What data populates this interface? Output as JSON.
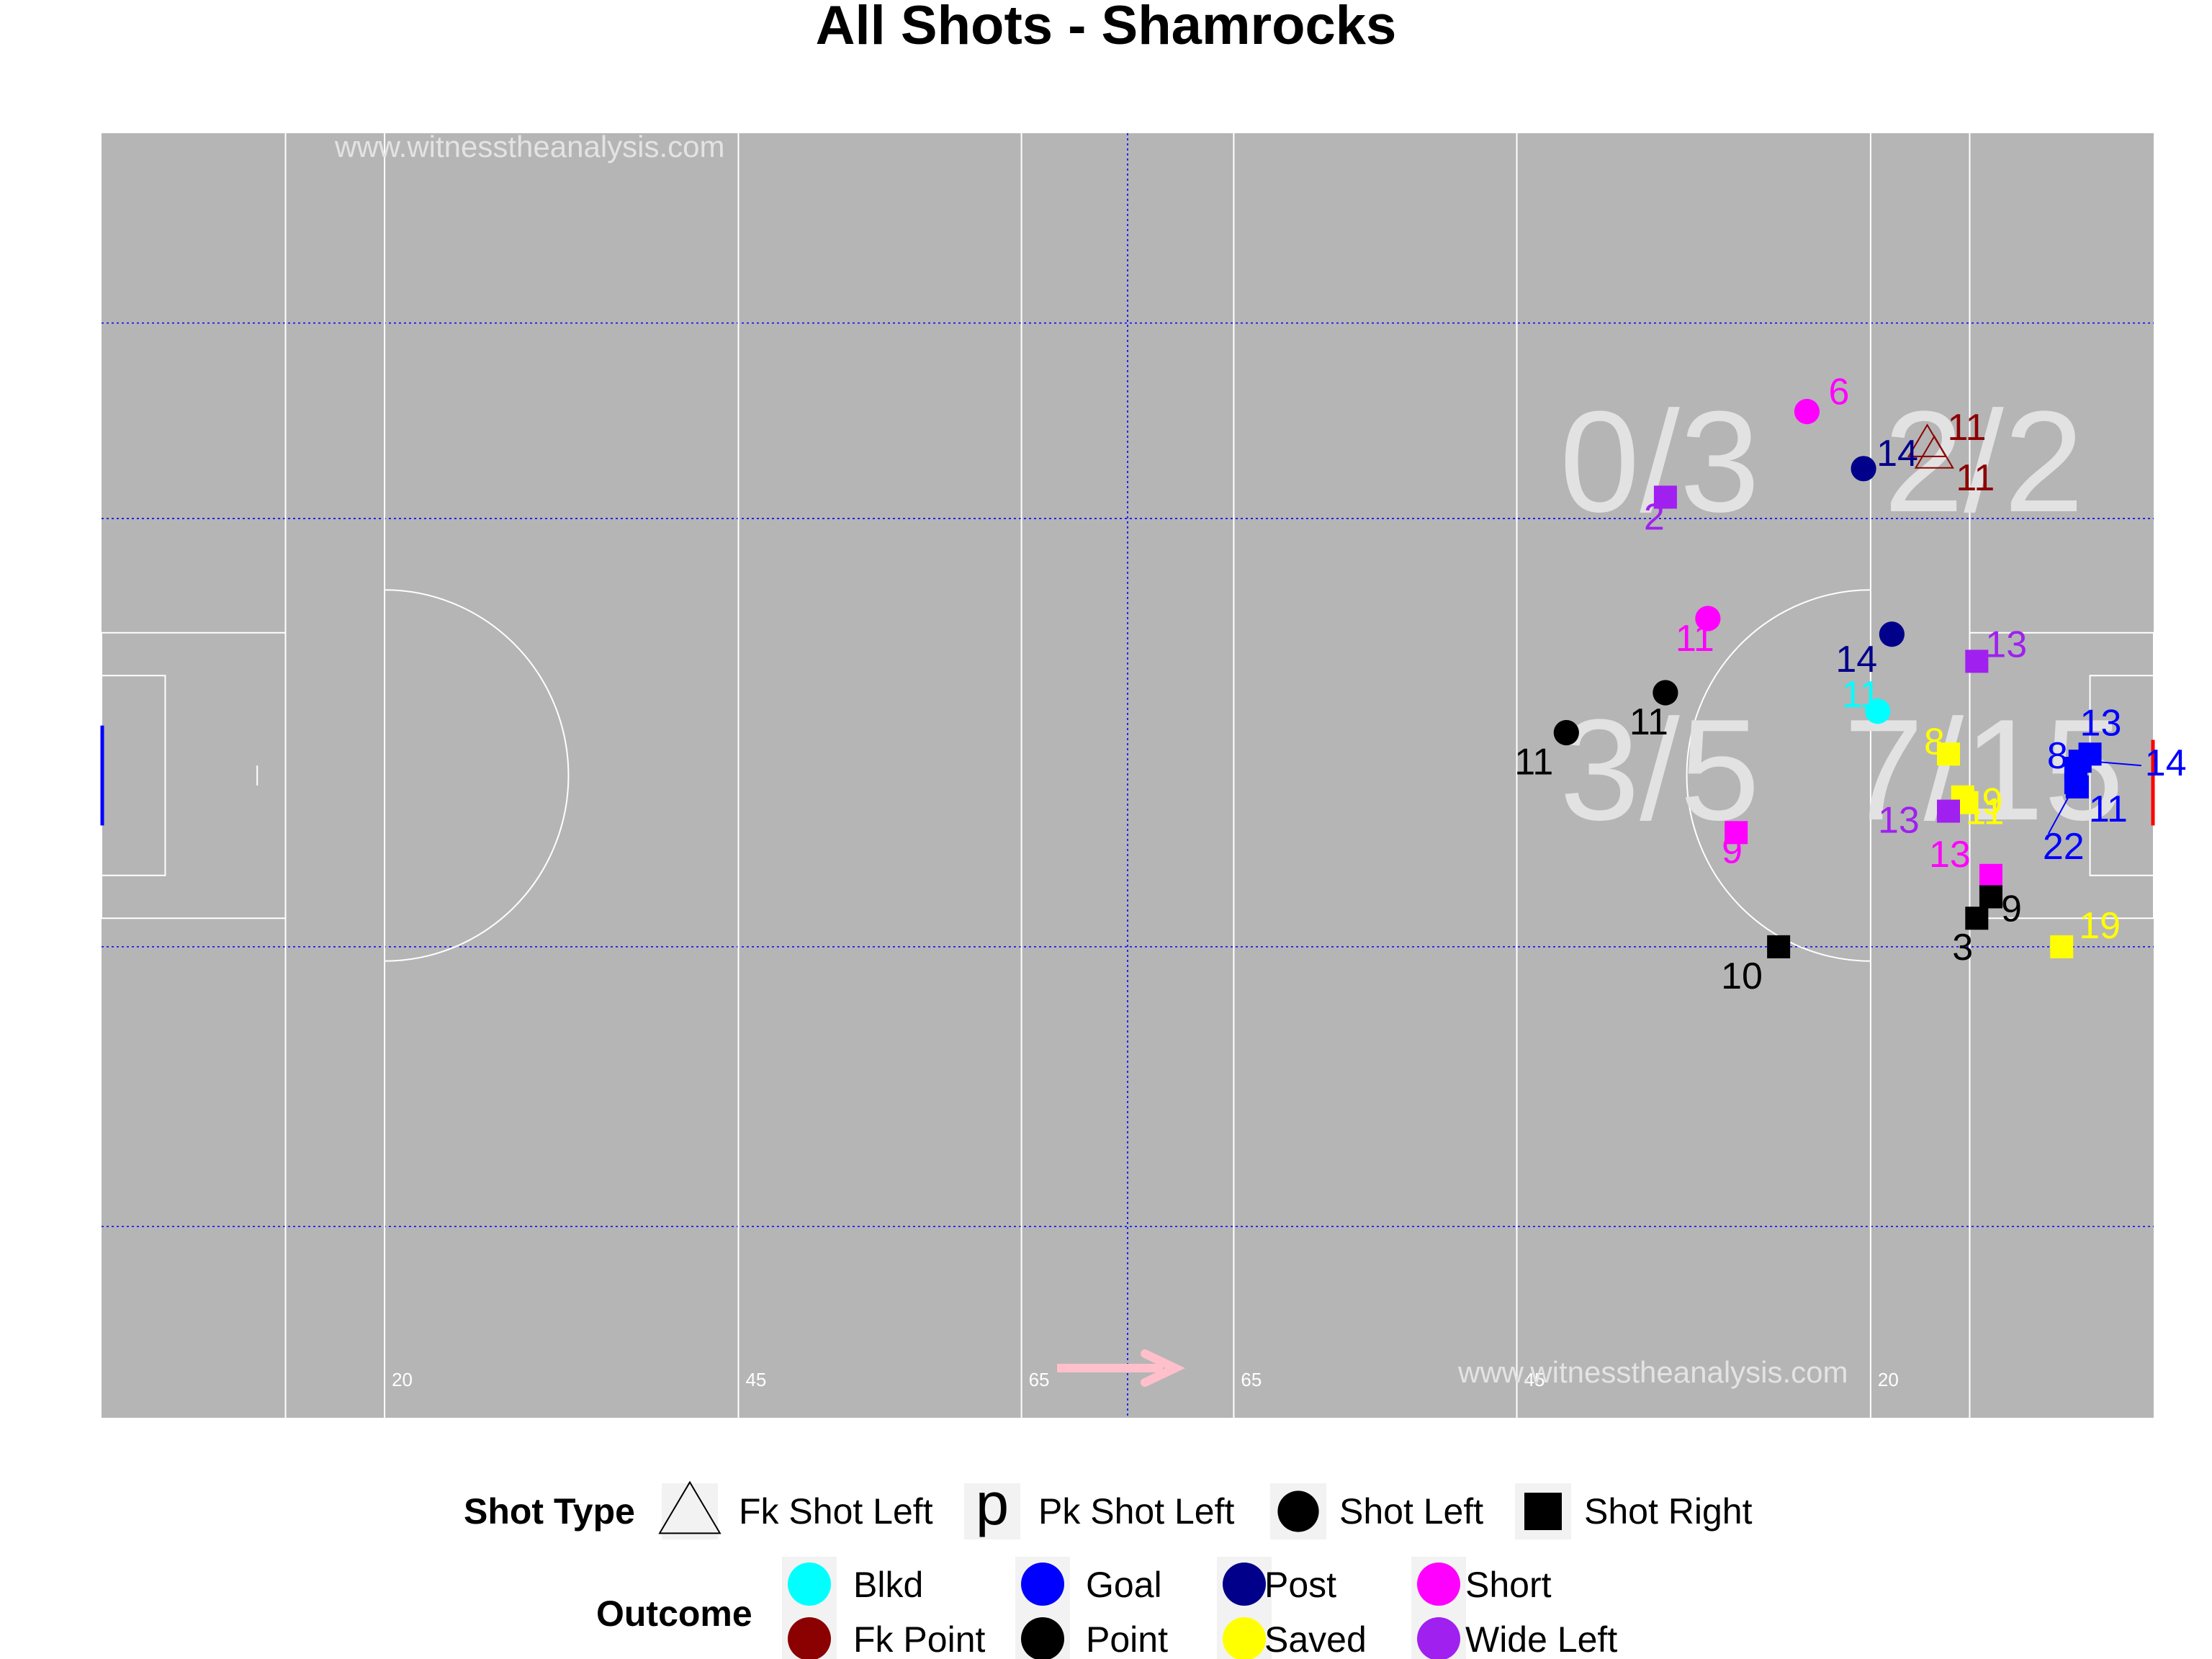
{
  "chart_data": {
    "type": "scatter",
    "title": "All Shots - Shamrocks",
    "watermark": "www.witnesstheanalysis.com",
    "field_color": "#b5b5b5",
    "pitch_line_markers": [
      "20",
      "45",
      "65",
      "65",
      "45",
      "20"
    ],
    "xlim": [
      0,
      145
    ],
    "ylim": [
      0,
      90
    ],
    "zone_labels": [
      {
        "text": "0/3",
        "zone": "upper-left-of-20m"
      },
      {
        "text": "2/2",
        "zone": "upper-inside-20m"
      },
      {
        "text": "3/5",
        "zone": "centre-left-of-20m"
      },
      {
        "text": "7/15",
        "zone": "centre-inside-20m"
      }
    ],
    "shot_type_legend": {
      "title": "Shot Type",
      "items": [
        {
          "label": "Fk Shot Left",
          "shape": "open-triangle"
        },
        {
          "label": "Pk Shot Left",
          "shape": "letter-p"
        },
        {
          "label": "Shot Left",
          "shape": "circle"
        },
        {
          "label": "Shot Right",
          "shape": "square"
        }
      ]
    },
    "outcome_legend": {
      "title": "Outcome",
      "items": [
        {
          "label": "Blkd",
          "color": "#00ffff"
        },
        {
          "label": "Goal",
          "color": "#0000ff"
        },
        {
          "label": "Post",
          "color": "#00008b"
        },
        {
          "label": "Short",
          "color": "#ff00ff"
        },
        {
          "label": "Fk Point",
          "color": "#8b0000"
        },
        {
          "label": "Point",
          "color": "#000000"
        },
        {
          "label": "Saved",
          "color": "#ffff00"
        },
        {
          "label": "Wide Left",
          "color": "#a020f0"
        }
      ]
    },
    "shots": [
      {
        "player": "6",
        "x": 120.5,
        "y": 70.5,
        "shape": "circle",
        "outcome": "Short"
      },
      {
        "player": "11",
        "x": 129.0,
        "y": 68.3,
        "shape": "open-triangle",
        "outcome": "Fk Point"
      },
      {
        "player": "11",
        "x": 129.5,
        "y": 67.5,
        "shape": "open-triangle",
        "outcome": "Fk Point"
      },
      {
        "player": "14",
        "x": 124.5,
        "y": 66.5,
        "shape": "circle",
        "outcome": "Post"
      },
      {
        "player": "2",
        "x": 110.5,
        "y": 64.5,
        "shape": "square",
        "outcome": "Wide Left"
      },
      {
        "player": "11",
        "x": 113.5,
        "y": 56.0,
        "shape": "circle",
        "outcome": "Short"
      },
      {
        "player": "14",
        "x": 126.5,
        "y": 54.9,
        "shape": "circle",
        "outcome": "Post"
      },
      {
        "player": "13",
        "x": 132.5,
        "y": 53.0,
        "shape": "square",
        "outcome": "Wide Left"
      },
      {
        "player": "11",
        "x": 110.5,
        "y": 50.8,
        "shape": "circle",
        "outcome": "Point"
      },
      {
        "player": "11",
        "x": 103.5,
        "y": 48.0,
        "shape": "circle",
        "outcome": "Point"
      },
      {
        "player": "11",
        "x": 125.5,
        "y": 49.5,
        "shape": "circle",
        "outcome": "Blkd"
      },
      {
        "player": "8",
        "x": 130.5,
        "y": 46.5,
        "shape": "square",
        "outcome": "Saved"
      },
      {
        "player": "13",
        "x": 140.5,
        "y": 46.5,
        "shape": "square",
        "outcome": "Goal"
      },
      {
        "player": "8",
        "x": 139.5,
        "y": 45.5,
        "shape": "square",
        "outcome": "Goal"
      },
      {
        "player": "14",
        "x": 139.8,
        "y": 46.0,
        "shape": "square",
        "outcome": "Goal"
      },
      {
        "player": "11",
        "x": 139.5,
        "y": 44.5,
        "shape": "square",
        "outcome": "Goal"
      },
      {
        "player": "22",
        "x": 139.6,
        "y": 44.2,
        "shape": "square",
        "outcome": "Goal"
      },
      {
        "player": "19",
        "x": 131.5,
        "y": 43.5,
        "shape": "square",
        "outcome": "Saved"
      },
      {
        "player": "11",
        "x": 131.8,
        "y": 43.1,
        "shape": "square",
        "outcome": "Saved"
      },
      {
        "player": "13",
        "x": 130.5,
        "y": 42.5,
        "shape": "square",
        "outcome": "Wide Left"
      },
      {
        "player": "9",
        "x": 115.5,
        "y": 41.0,
        "shape": "square",
        "outcome": "Short"
      },
      {
        "player": "13",
        "x": 133.5,
        "y": 38.0,
        "shape": "square",
        "outcome": "Short"
      },
      {
        "player": "9",
        "x": 133.5,
        "y": 36.5,
        "shape": "square",
        "outcome": "Point"
      },
      {
        "player": "3",
        "x": 132.5,
        "y": 35.0,
        "shape": "square",
        "outcome": "Point"
      },
      {
        "player": "10",
        "x": 118.5,
        "y": 33.0,
        "shape": "square",
        "outcome": "Point"
      },
      {
        "player": "19",
        "x": 138.5,
        "y": 33.0,
        "shape": "square",
        "outcome": "Saved"
      }
    ]
  }
}
